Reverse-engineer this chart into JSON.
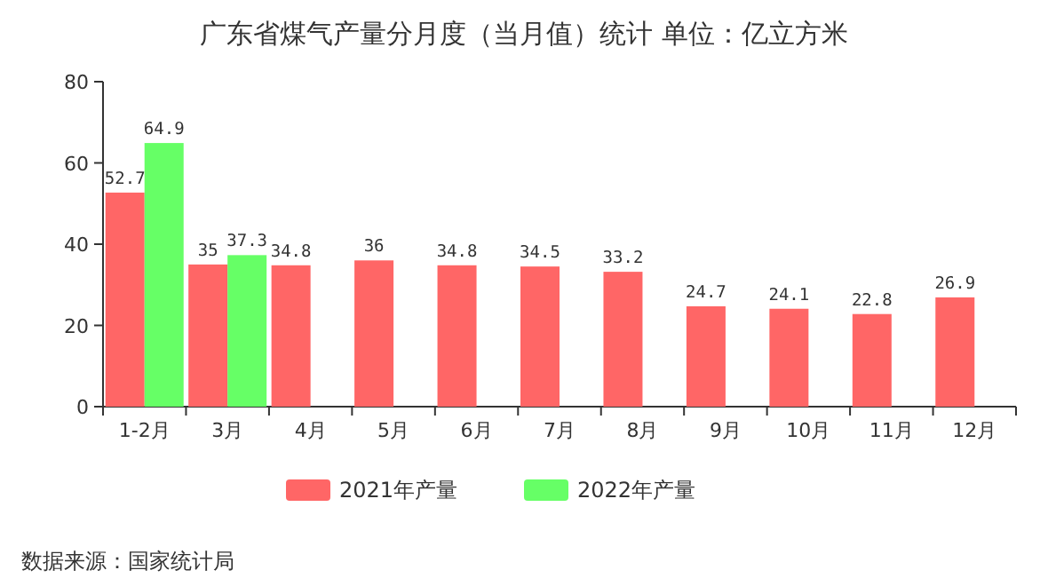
{
  "chart_data": {
    "type": "bar",
    "title": "广东省煤气产量分月度（当月值）统计  单位：亿立方米",
    "categories": [
      "1-2月",
      "3月",
      "4月",
      "5月",
      "6月",
      "7月",
      "8月",
      "9月",
      "10月",
      "11月",
      "12月"
    ],
    "series": [
      {
        "name": "2021年产量",
        "color": "#ff6666",
        "values": [
          52.7,
          35,
          34.8,
          36,
          34.8,
          34.5,
          33.2,
          24.7,
          24.1,
          22.8,
          26.9
        ]
      },
      {
        "name": "2022年产量",
        "color": "#66ff66",
        "values": [
          64.9,
          37.3,
          null,
          null,
          null,
          null,
          null,
          null,
          null,
          null,
          null
        ]
      }
    ],
    "ylim": [
      0,
      80
    ],
    "yticks": [
      0,
      20,
      40,
      60,
      80
    ],
    "data_labels": true,
    "legend": "bottom",
    "annotations": [
      "数据来源：国家统计局"
    ]
  }
}
